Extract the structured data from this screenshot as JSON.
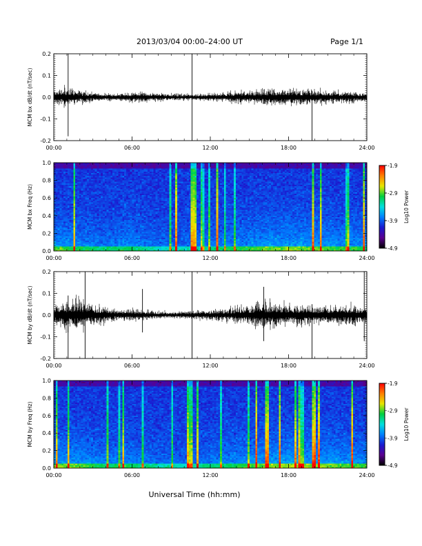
{
  "header": {
    "title": "2013/03/04  00:00–24:00 UT",
    "page": "Page 1/1"
  },
  "footer": {
    "xlabel": "Universal Time (hh:mm)"
  },
  "chart_data": [
    {
      "type": "line",
      "ylabel": "MCM bx dB/dt (nT/sec)",
      "ylim": [
        -0.2,
        0.2
      ],
      "yticks": [
        "0.2",
        "0.1",
        "0.0",
        "-0.1",
        "-0.2"
      ],
      "xlim": [
        0,
        24
      ],
      "xticks": [
        "00:00",
        "06:00",
        "12:00",
        "18:00",
        "24:00"
      ],
      "envelope_hours": [
        0,
        1,
        2,
        3,
        4,
        5,
        6,
        7,
        8,
        9,
        10,
        11,
        12,
        13,
        14,
        15,
        16,
        17,
        18,
        19,
        20,
        21,
        22,
        23,
        24
      ],
      "envelope_amplitude": [
        0.03,
        0.035,
        0.025,
        0.02,
        0.015,
        0.015,
        0.02,
        0.02,
        0.015,
        0.015,
        0.012,
        0.012,
        0.015,
        0.018,
        0.022,
        0.025,
        0.03,
        0.03,
        0.032,
        0.03,
        0.028,
        0.025,
        0.022,
        0.02,
        0.02
      ],
      "spikes": [
        {
          "hour": 1.1,
          "max": 0.2,
          "min": -0.18
        },
        {
          "hour": 10.6,
          "max": 0.2,
          "min": -0.2
        },
        {
          "hour": 19.8,
          "max": 0.03,
          "min": -0.2
        }
      ]
    },
    {
      "type": "heatmap",
      "ylabel": "MCM bx Freq (Hz)",
      "ylim": [
        0,
        1.0
      ],
      "yticks": [
        "1.0",
        "0.8",
        "0.6",
        "0.4",
        "0.2",
        "0.0"
      ],
      "xlim": [
        0,
        24
      ],
      "xticks": [
        "00:00",
        "06:00",
        "12:00",
        "18:00",
        "24:00"
      ],
      "colorbar": {
        "label": "Log10 Power",
        "ticks": [
          "-1.9",
          "-2.9",
          "-3.9",
          "-4.9"
        ],
        "range": [
          -4.9,
          -1.9
        ]
      },
      "activity_hours": [
        0,
        2,
        4,
        6,
        8,
        10,
        12,
        14,
        16,
        18,
        20,
        22,
        24
      ],
      "activity_level": [
        0.6,
        0.5,
        0.4,
        0.5,
        0.3,
        0.3,
        0.4,
        0.5,
        0.6,
        0.65,
        0.6,
        0.55,
        0.5
      ]
    },
    {
      "type": "line",
      "ylabel": "MCM by dB/dt (nT/sec)",
      "ylim": [
        -0.2,
        0.2
      ],
      "yticks": [
        "0.2",
        "0.1",
        "0.0",
        "-0.1",
        "-0.2"
      ],
      "xlim": [
        0,
        24
      ],
      "xticks": [
        "00:00",
        "06:00",
        "12:00",
        "18:00",
        "24:00"
      ],
      "envelope_hours": [
        0,
        1,
        2,
        3,
        4,
        5,
        6,
        7,
        8,
        9,
        10,
        11,
        12,
        13,
        14,
        15,
        16,
        17,
        18,
        19,
        20,
        21,
        22,
        23,
        24
      ],
      "envelope_amplitude": [
        0.04,
        0.055,
        0.06,
        0.04,
        0.03,
        0.02,
        0.025,
        0.02,
        0.015,
        0.012,
        0.015,
        0.018,
        0.02,
        0.025,
        0.03,
        0.04,
        0.05,
        0.045,
        0.04,
        0.04,
        0.035,
        0.035,
        0.04,
        0.04,
        0.03
      ],
      "spikes": [
        {
          "hour": 1.1,
          "max": 0.09,
          "min": -0.2
        },
        {
          "hour": 2.4,
          "max": 0.2,
          "min": -0.2
        },
        {
          "hour": 6.8,
          "max": 0.12,
          "min": -0.08
        },
        {
          "hour": 10.6,
          "max": 0.2,
          "min": -0.2
        },
        {
          "hour": 16.1,
          "max": 0.13,
          "min": -0.12
        },
        {
          "hour": 19.8,
          "max": 0.05,
          "min": -0.2
        },
        {
          "hour": 23.8,
          "max": 0.2,
          "min": -0.12
        }
      ]
    },
    {
      "type": "heatmap",
      "ylabel": "MCM by Freq (Hz)",
      "ylim": [
        0,
        1.0
      ],
      "yticks": [
        "1.0",
        "0.8",
        "0.6",
        "0.4",
        "0.2",
        "0.0"
      ],
      "xlim": [
        0,
        24
      ],
      "xticks": [
        "00:00",
        "06:00",
        "12:00",
        "18:00",
        "24:00"
      ],
      "colorbar": {
        "label": "Log10 Power",
        "ticks": [
          "-1.9",
          "-2.9",
          "-3.9",
          "-4.9"
        ],
        "range": [
          -4.9,
          -1.9
        ]
      },
      "activity_hours": [
        0,
        2,
        4,
        6,
        8,
        10,
        12,
        14,
        16,
        18,
        20,
        22,
        24
      ],
      "activity_level": [
        0.65,
        0.6,
        0.45,
        0.5,
        0.35,
        0.3,
        0.4,
        0.5,
        0.6,
        0.7,
        0.65,
        0.6,
        0.55
      ]
    }
  ],
  "colors": {
    "trace": "#000000",
    "colormap": [
      "#000000",
      "#5a0090",
      "#1a1ad0",
      "#0080ff",
      "#00e0e0",
      "#00d040",
      "#e8e800",
      "#ff8000",
      "#ff0000"
    ]
  }
}
